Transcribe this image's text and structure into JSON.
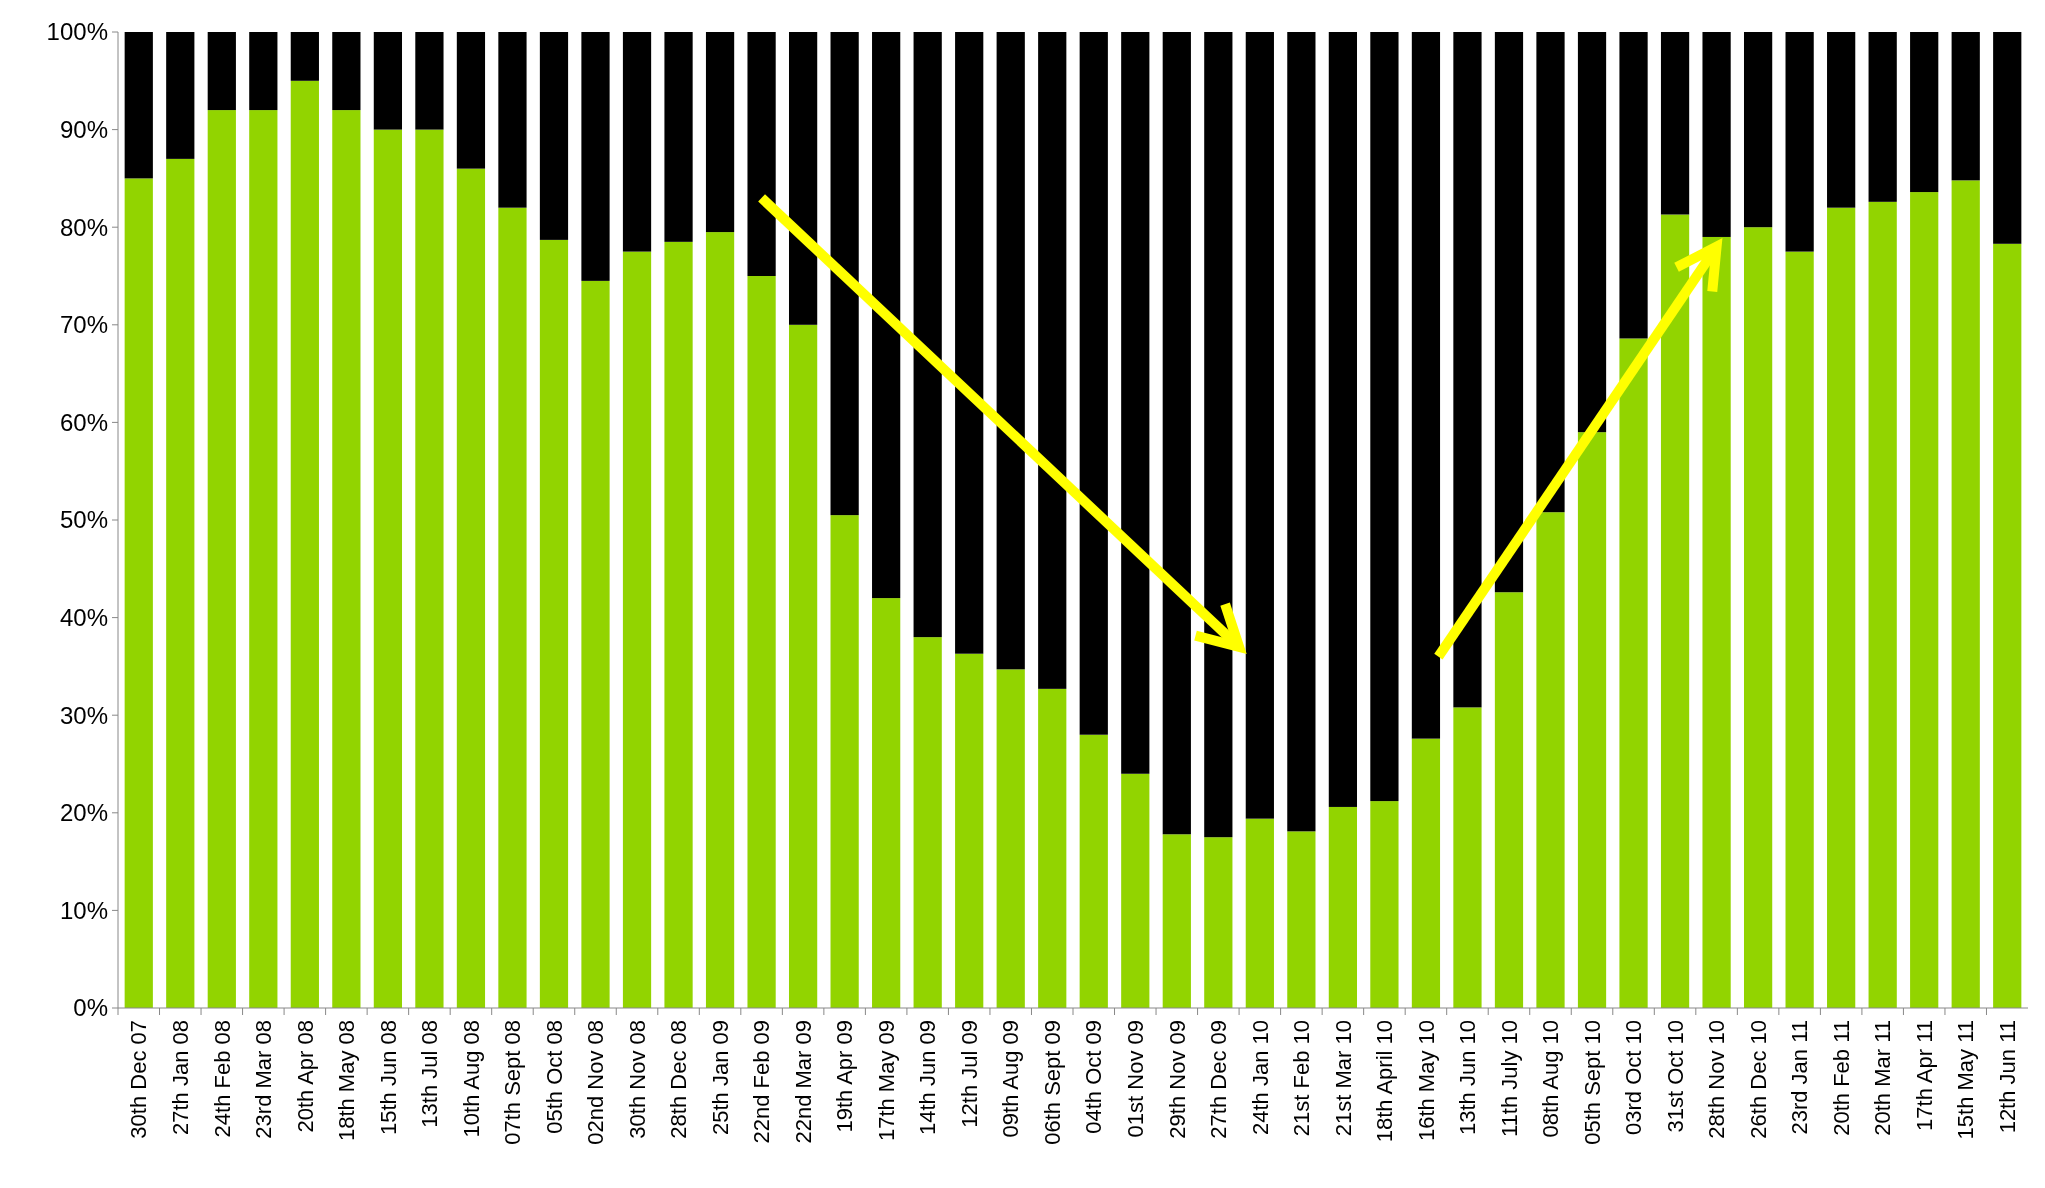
{
  "chart_data": {
    "type": "bar",
    "stacked": true,
    "categories": [
      "30th Dec 07",
      "27th Jan 08",
      "24th Feb 08",
      "23rd Mar 08",
      "20th Apr 08",
      "18th May 08",
      "15th Jun 08",
      "13th Jul 08",
      "10th Aug 08",
      "07th Sept 08",
      "05th Oct 08",
      "02nd Nov 08",
      "30th Nov 08",
      "28th Dec 08",
      "25th Jan 09",
      "22nd Feb 09",
      "22nd Mar 09",
      "19th Apr 09",
      "17th May 09",
      "14th Jun 09",
      "12th Jul 09",
      "09th Aug 09",
      "06th Sept 09",
      "04th Oct 09",
      "01st Nov 09",
      "29th Nov 09",
      "27th Dec 09",
      "24th Jan 10",
      "21st Feb 10",
      "21st Mar 10",
      "18th April 10",
      "16th May 10",
      "13th Jun 10",
      "11th July 10",
      "08th Aug 10",
      "05th Sept 10",
      "03rd Oct 10",
      "31st Oct 10",
      "28th Nov 10",
      "26th Dec 10",
      "23rd Jan 11",
      "20th Feb 11",
      "20th Mar 11",
      "17th Apr 11",
      "15th May 11",
      "12th Jun 11"
    ],
    "series": [
      {
        "color": "#92d400",
        "values": [
          85,
          87,
          92,
          92,
          95,
          92,
          90,
          90,
          86,
          82,
          78.7,
          74.5,
          77.5,
          78.5,
          79.5,
          75,
          70,
          50.5,
          42,
          38,
          36.3,
          34.7,
          32.7,
          28,
          24,
          17.8,
          17.5,
          19.4,
          18.1,
          20.6,
          21.2,
          27.6,
          30.8,
          42.6,
          50.8,
          59,
          68.6,
          81.3,
          79,
          80,
          77.5,
          82,
          82.6,
          83.6,
          84.8,
          78.3
        ]
      },
      {
        "color": "#000000",
        "values": [
          15,
          13,
          8,
          8,
          5,
          8,
          10,
          10,
          14,
          18,
          21.3,
          25.5,
          22.5,
          21.5,
          20.5,
          25,
          30,
          49.5,
          58,
          62,
          63.7,
          65.3,
          67.3,
          72,
          76,
          82.2,
          82.5,
          80.6,
          81.9,
          79.4,
          78.8,
          72.4,
          69.2,
          57.4,
          49.2,
          41,
          31.4,
          18.7,
          21,
          20,
          22.5,
          18,
          17.4,
          16.4,
          15.2,
          21.7
        ]
      }
    ],
    "ylim": [
      0,
      100
    ],
    "yticks": [
      {
        "value": 0,
        "label": "0%"
      },
      {
        "value": 10,
        "label": "10%"
      },
      {
        "value": 20,
        "label": "20%"
      },
      {
        "value": 30,
        "label": "30%"
      },
      {
        "value": 40,
        "label": "40%"
      },
      {
        "value": 50,
        "label": "50%"
      },
      {
        "value": 60,
        "label": "60%"
      },
      {
        "value": 70,
        "label": "70%"
      },
      {
        "value": 80,
        "label": "80%"
      },
      {
        "value": 90,
        "label": "90%"
      },
      {
        "value": 100,
        "label": "100%"
      }
    ]
  }
}
